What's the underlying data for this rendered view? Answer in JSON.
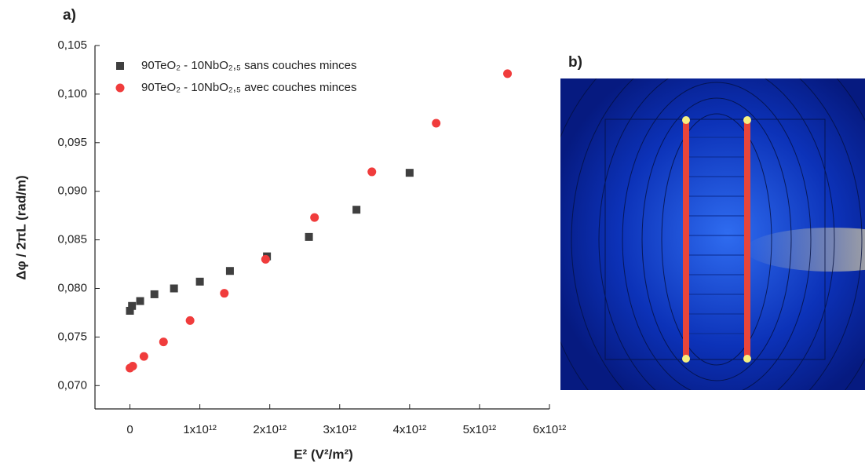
{
  "chart_data": {
    "type": "scatter",
    "panel_label": "a)",
    "x_label": "E² (V²/m²)",
    "y_label": "Δφ / 2πL (rad/m)",
    "xlim": [
      -500000000000.0,
      6000000000000.0
    ],
    "ylim": [
      0.0676,
      0.105
    ],
    "xticks": [
      0,
      {
        "value": 1000000000000.0,
        "label": "1x10¹²"
      },
      {
        "value": 2000000000000.0,
        "label": "2x10¹²"
      },
      {
        "value": 3000000000000.0,
        "label": "3x10¹²"
      },
      {
        "value": 4000000000000.0,
        "label": "4x10¹²"
      },
      {
        "value": 5000000000000.0,
        "label": "5x10¹²"
      },
      {
        "value": 6000000000000.0,
        "label": "6x10¹²"
      }
    ],
    "yticks": [
      {
        "value": 0.07,
        "label": "0,070"
      },
      {
        "value": 0.075,
        "label": "0,075"
      },
      {
        "value": 0.08,
        "label": "0,080"
      },
      {
        "value": 0.085,
        "label": "0,085"
      },
      {
        "value": 0.09,
        "label": "0,090"
      },
      {
        "value": 0.095,
        "label": "0,095"
      },
      {
        "value": 0.1,
        "label": "0,100"
      },
      {
        "value": 0.105,
        "label": "0,105"
      }
    ],
    "series": [
      {
        "name": "90TeO₂ - 10NbO₂,₅ sans couches minces",
        "color": "#3f3f3f",
        "marker": "square",
        "x": [
          0,
          30000000000.0,
          146000000000.0,
          350000000000.0,
          630000000000.0,
          1000000000000.0,
          1430000000000.0,
          1960000000000.0,
          2560000000000.0,
          3240000000000.0,
          4000000000000.0
        ],
        "values": [
          0.0777,
          0.0782,
          0.0787,
          0.0794,
          0.08,
          0.0807,
          0.0818,
          0.0833,
          0.0853,
          0.0881,
          0.0919
        ]
      },
      {
        "name": "90TeO₂ - 10NbO₂,₅ avec couches minces",
        "color": "#f03c3c",
        "marker": "circle",
        "x": [
          0,
          40000000000.0,
          200000000000.0,
          480000000000.0,
          860000000000.0,
          1350000000000.0,
          1940000000000.0,
          2640000000000.0,
          3460000000000.0,
          4380000000000.0,
          5400000000000.0
        ],
        "values": [
          0.0718,
          0.072,
          0.073,
          0.0745,
          0.0767,
          0.0795,
          0.083,
          0.0873,
          0.092,
          0.097,
          0.1021
        ]
      }
    ]
  },
  "panel_b": {
    "label": "b)"
  }
}
